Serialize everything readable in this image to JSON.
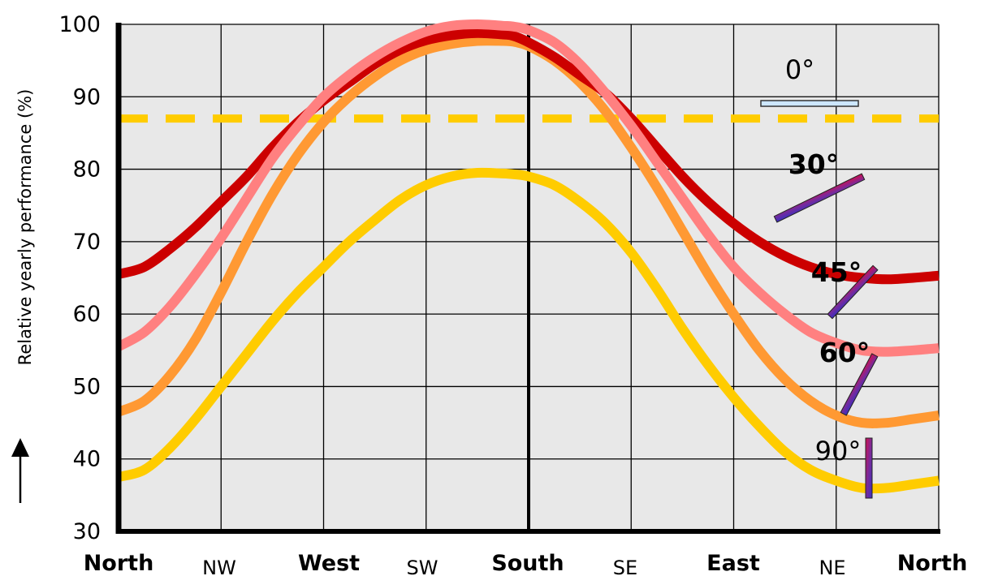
{
  "chart_data": {
    "type": "line",
    "ylabel": "Relative yearly performance (%)",
    "xlabel": "",
    "ylim": [
      30,
      100
    ],
    "yticks": [
      30,
      40,
      50,
      60,
      70,
      80,
      90,
      100
    ],
    "xlim": [
      0,
      8
    ],
    "x_ticks": [
      {
        "label": "North",
        "bold": true
      },
      {
        "label": "NW",
        "bold": false
      },
      {
        "label": "West",
        "bold": true
      },
      {
        "label": "SW",
        "bold": false
      },
      {
        "label": "South",
        "bold": true
      },
      {
        "label": "SE",
        "bold": false
      },
      {
        "label": "East",
        "bold": true
      },
      {
        "label": "NE",
        "bold": false
      },
      {
        "label": "North",
        "bold": true
      }
    ],
    "grid": true,
    "reference_line": {
      "y": 87,
      "color": "#ffcc00",
      "style": "dashed"
    },
    "series": [
      {
        "name": "0°",
        "color": "#ff8080",
        "label_bold": false,
        "x": [
          0,
          0.25,
          0.5,
          0.75,
          1,
          1.25,
          1.5,
          1.75,
          2,
          2.25,
          2.5,
          2.75,
          3,
          3.25,
          3.5,
          3.75,
          3.85,
          4,
          4.25,
          4.5,
          4.75,
          5,
          5.25,
          5.5,
          5.75,
          6,
          6.25,
          6.5,
          6.75,
          7,
          7.25,
          7.5,
          7.75,
          8
        ],
        "values": [
          55.5,
          57.5,
          61,
          65.5,
          70.5,
          76,
          81.5,
          86,
          90,
          93,
          95.5,
          97.5,
          99,
          99.8,
          100,
          99.8,
          99.7,
          99.2,
          97.5,
          94.5,
          90.5,
          86,
          81,
          76,
          71,
          66.5,
          63,
          60,
          57.5,
          56,
          55,
          54.8,
          55,
          55.3
        ]
      },
      {
        "name": "30°",
        "color": "#cc0000",
        "label_bold": true,
        "x": [
          0,
          0.25,
          0.5,
          0.75,
          1,
          1.25,
          1.5,
          1.75,
          2,
          2.25,
          2.5,
          2.75,
          3,
          3.25,
          3.5,
          3.75,
          3.85,
          4,
          4.25,
          4.5,
          4.75,
          5,
          5.25,
          5.5,
          5.75,
          6,
          6.25,
          6.5,
          6.75,
          7,
          7.25,
          7.5,
          7.75,
          8
        ],
        "values": [
          65.5,
          66.5,
          69,
          72,
          75.5,
          79,
          83,
          86.5,
          89.5,
          92,
          94.5,
          96.5,
          97.8,
          98.5,
          98.8,
          98.6,
          98.4,
          97.5,
          95.5,
          93,
          90.5,
          87,
          83,
          79,
          75.5,
          72.5,
          70,
          68,
          66.5,
          65.5,
          65,
          64.8,
          65,
          65.3
        ]
      },
      {
        "name": "45°",
        "color": "#ff9933",
        "label_bold": true,
        "x": [
          0,
          0.25,
          0.5,
          0.75,
          1,
          1.25,
          1.5,
          1.75,
          2,
          2.25,
          2.5,
          2.75,
          3,
          3.25,
          3.5,
          3.75,
          3.85,
          4,
          4.25,
          4.5,
          4.75,
          5,
          5.25,
          5.5,
          5.75,
          6,
          6.25,
          6.5,
          6.75,
          7,
          7.25,
          7.5,
          7.75,
          8
        ],
        "values": [
          46.5,
          48,
          51.5,
          56.5,
          63,
          70,
          76.5,
          82,
          86.5,
          90,
          92.8,
          95,
          96.5,
          97.3,
          97.7,
          97.7,
          97.6,
          97,
          95,
          92,
          88,
          83,
          77.5,
          71.5,
          65.5,
          60,
          55,
          51,
          48,
          46,
          45,
          45,
          45.5,
          46
        ]
      },
      {
        "name": "90°",
        "color": "#ffcc00",
        "label_bold": false,
        "x": [
          0,
          0.25,
          0.5,
          0.75,
          1,
          1.25,
          1.5,
          1.75,
          2,
          2.25,
          2.5,
          2.75,
          3,
          3.25,
          3.5,
          3.75,
          3.85,
          4,
          4.25,
          4.5,
          4.75,
          5,
          5.25,
          5.5,
          5.75,
          6,
          6.25,
          6.5,
          6.75,
          7,
          7.25,
          7.5,
          7.75,
          8
        ],
        "values": [
          37.5,
          38.5,
          41.5,
          45.5,
          50,
          54.5,
          59,
          63,
          66.5,
          70,
          73,
          75.8,
          77.8,
          79,
          79.5,
          79.4,
          79.3,
          79,
          77.8,
          75.5,
          72.5,
          68.5,
          63.5,
          58,
          53,
          48.5,
          44.5,
          41,
          38.5,
          37,
          36,
          36,
          36.5,
          37
        ]
      }
    ],
    "annotations": [
      {
        "text": "0°",
        "bold": false
      },
      {
        "text": "30°",
        "bold": true
      },
      {
        "text": "45°",
        "bold": true
      },
      {
        "text": "60°",
        "bold": true
      },
      {
        "text": "90°",
        "bold": false
      }
    ]
  }
}
